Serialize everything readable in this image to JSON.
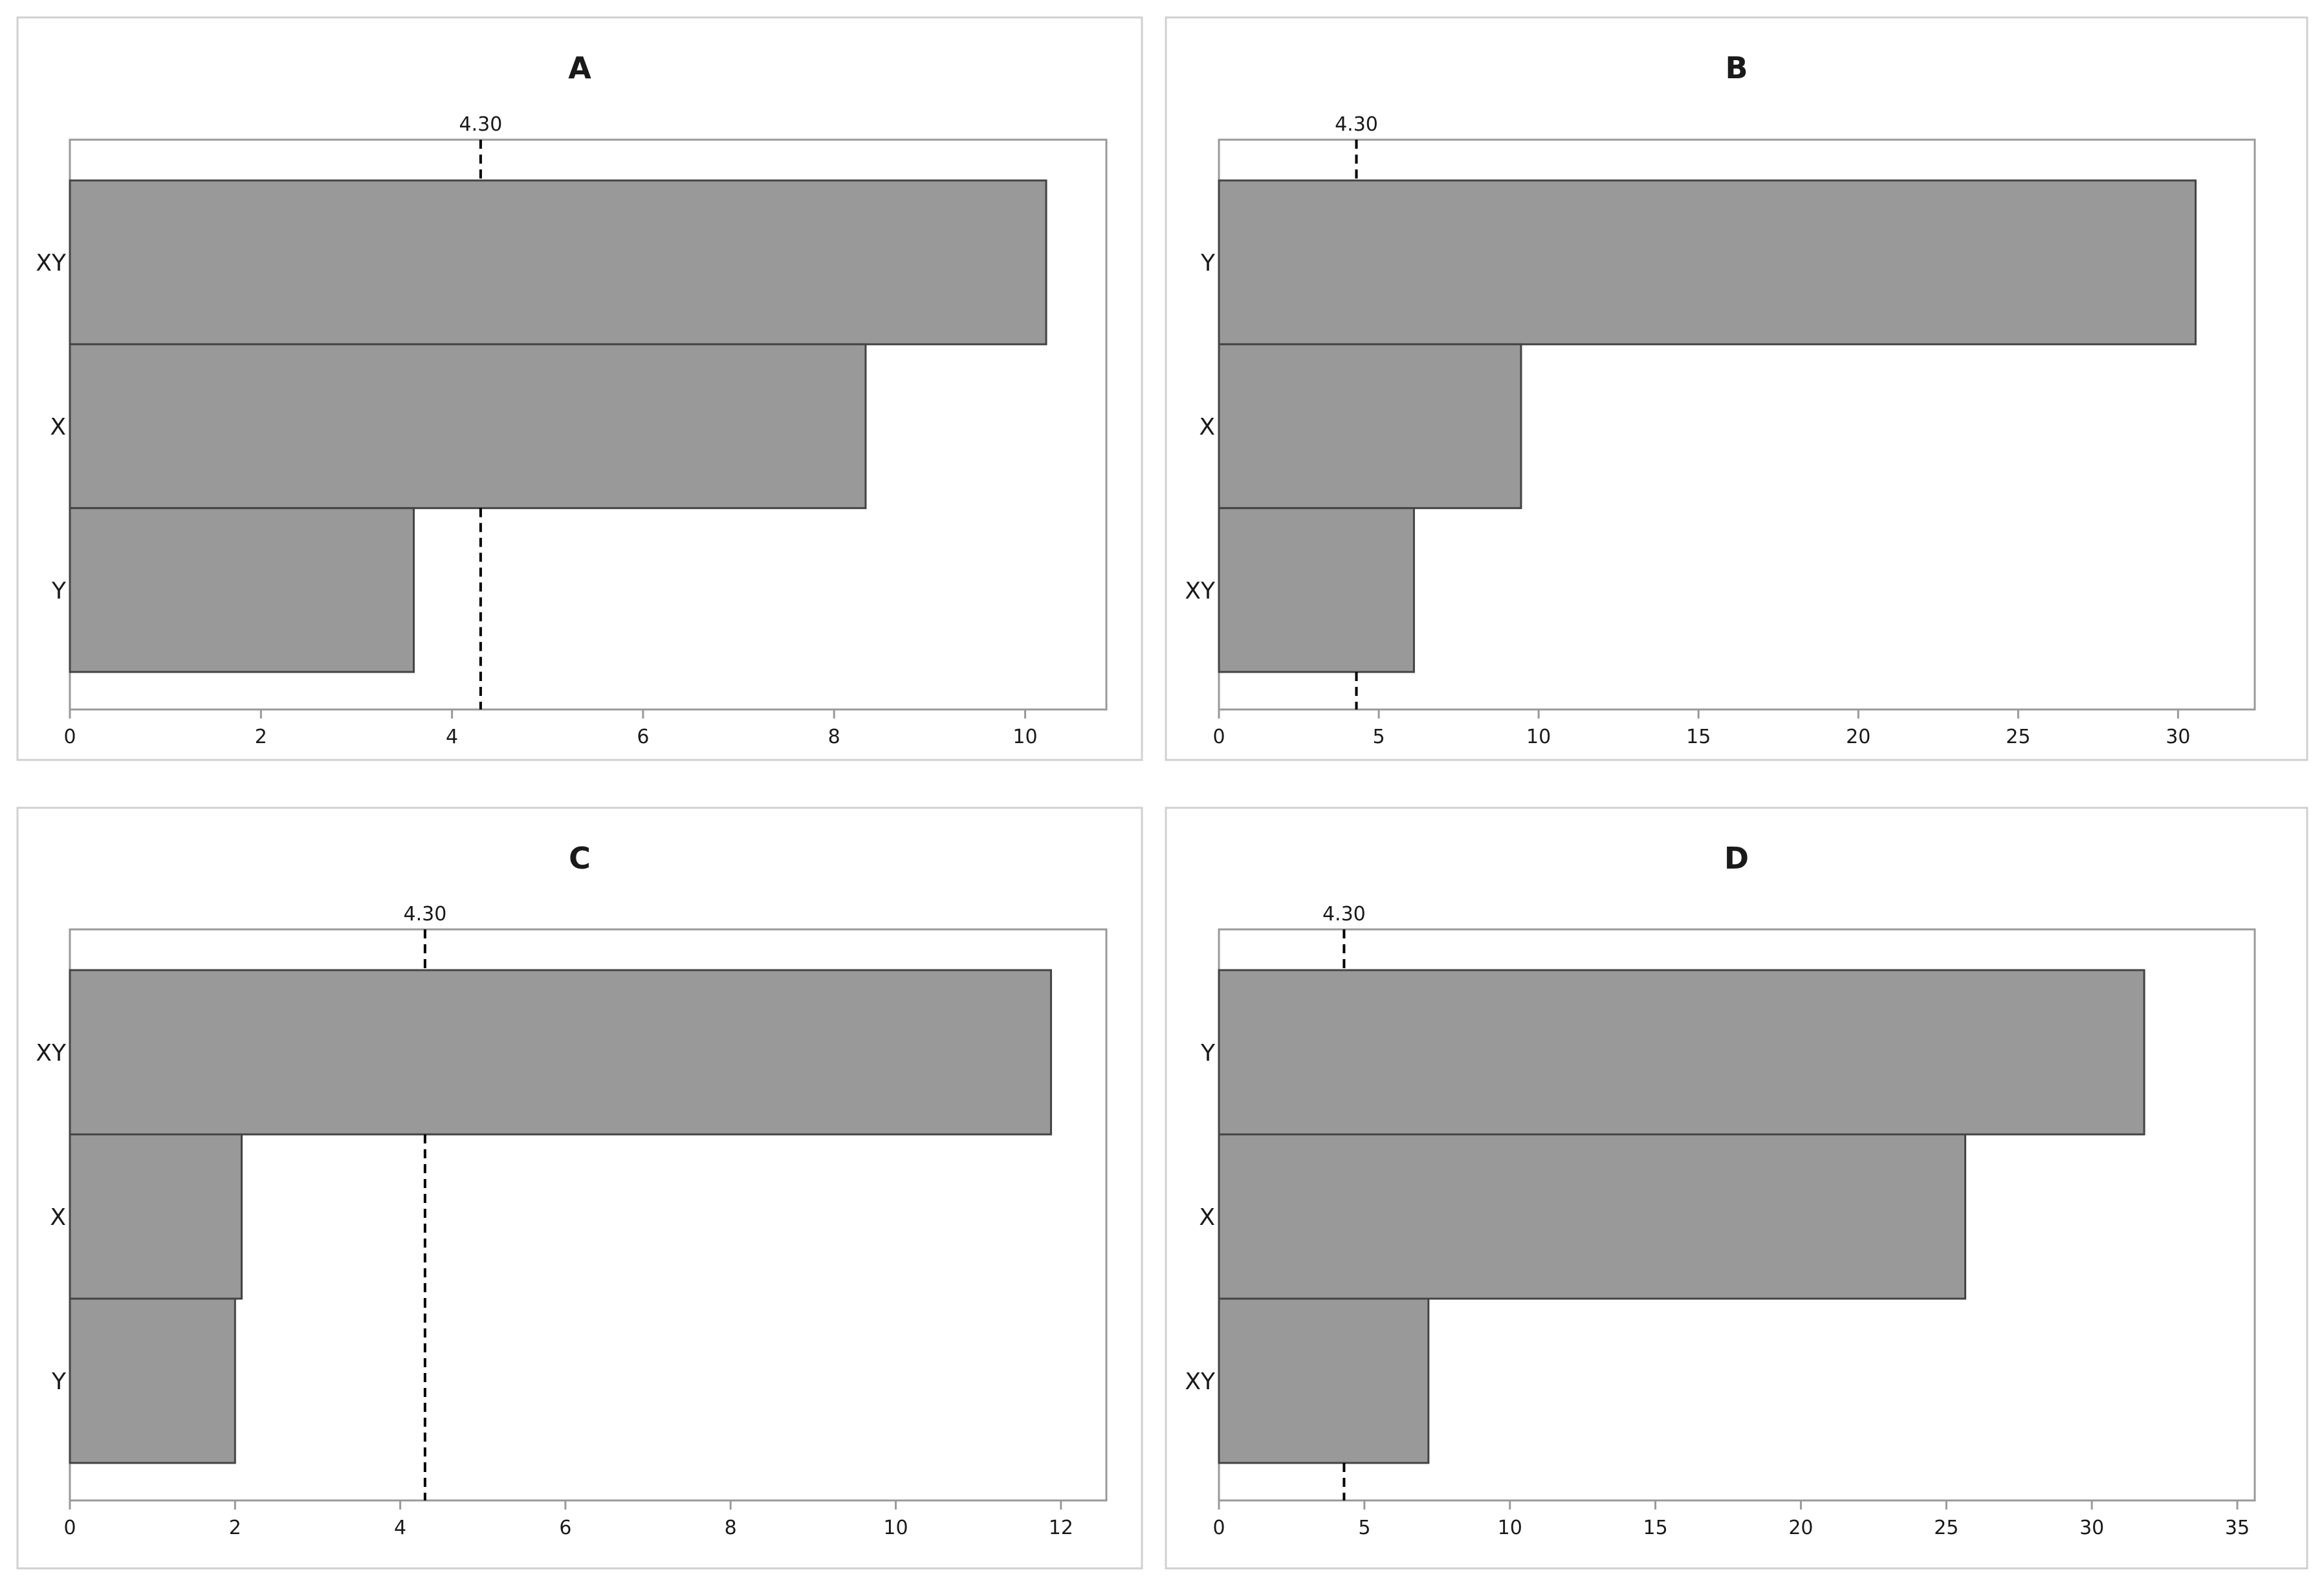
{
  "chart_data": [
    {
      "type": "bar",
      "orientation": "horizontal",
      "title": "A",
      "categories": [
        "XY",
        "X",
        "Y"
      ],
      "values": [
        10.22,
        8.33,
        3.6
      ],
      "xlim": [
        0,
        10.85
      ],
      "xticks": [
        0,
        2,
        4,
        6,
        8,
        10
      ],
      "reference_line": {
        "value": 4.3,
        "label": "4.30"
      },
      "grid": false
    },
    {
      "type": "bar",
      "orientation": "horizontal",
      "title": "B",
      "categories": [
        "Y",
        "X",
        "XY"
      ],
      "values": [
        30.55,
        9.45,
        6.1
      ],
      "xlim": [
        0,
        32.4
      ],
      "xticks": [
        0,
        5,
        10,
        15,
        20,
        25,
        30
      ],
      "reference_line": {
        "value": 4.3,
        "label": "4.30"
      },
      "grid": false
    },
    {
      "type": "bar",
      "orientation": "horizontal",
      "title": "C",
      "categories": [
        "XY",
        "X",
        "Y"
      ],
      "values": [
        11.88,
        2.08,
        2.0
      ],
      "xlim": [
        0,
        12.55
      ],
      "xticks": [
        0,
        2,
        4,
        6,
        8,
        10,
        12
      ],
      "reference_line": {
        "value": 4.3,
        "label": "4.30"
      },
      "grid": false
    },
    {
      "type": "bar",
      "orientation": "horizontal",
      "title": "D",
      "categories": [
        "Y",
        "X",
        "XY"
      ],
      "values": [
        31.8,
        25.65,
        7.2
      ],
      "xlim": [
        0,
        35.6
      ],
      "xticks": [
        0,
        5,
        10,
        15,
        20,
        25,
        30,
        35
      ],
      "reference_line": {
        "value": 4.3,
        "label": "4.30"
      },
      "grid": false
    }
  ]
}
